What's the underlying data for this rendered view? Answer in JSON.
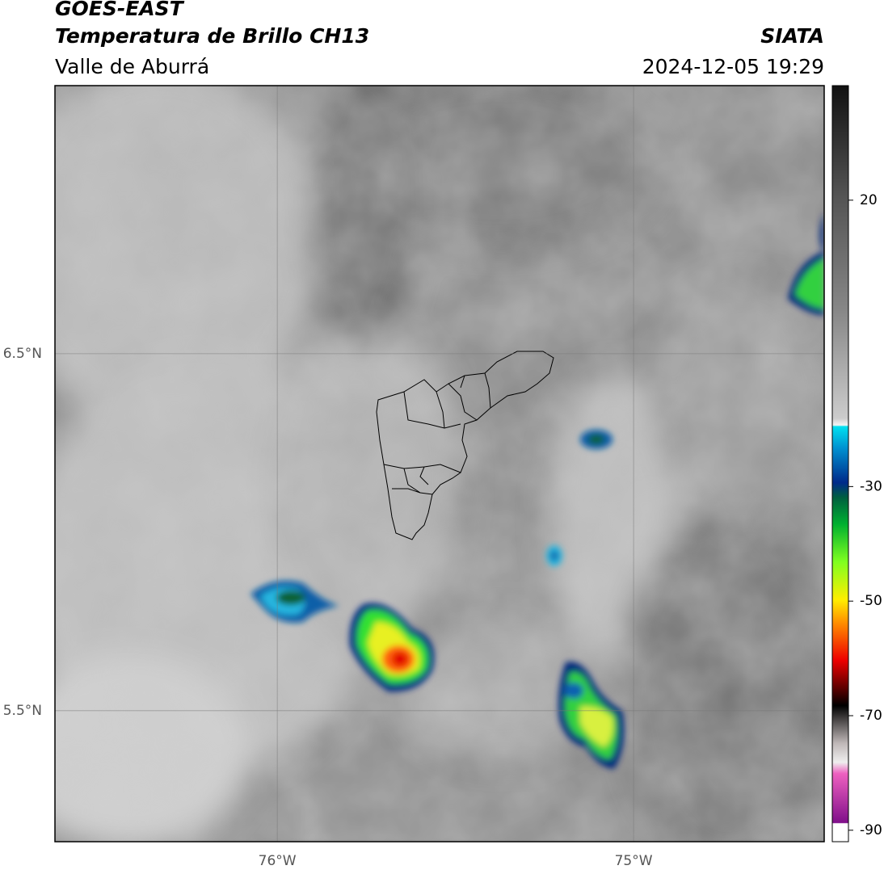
{
  "header": {
    "title": "GOES-EAST",
    "subtitle": "Temperatura de Brillo CH13",
    "region": "Valle de Aburrá",
    "source": "SIATA",
    "timestamp": "2024-12-05 19:29"
  },
  "map": {
    "lonlim": [
      -76.624,
      -74.465
    ],
    "latlim": [
      5.133,
      7.251
    ],
    "lonticks": [
      {
        "value": -76,
        "label": "76°W"
      },
      {
        "value": -75,
        "label": "75°W"
      }
    ],
    "latticks": [
      {
        "value": 6.5,
        "label": "6.5°N"
      },
      {
        "value": 5.5,
        "label": "5.5°N"
      }
    ],
    "colorbar": {
      "lim": [
        -92,
        40
      ],
      "ticks": [
        20,
        -30,
        -50,
        -70,
        -90
      ]
    }
  }
}
